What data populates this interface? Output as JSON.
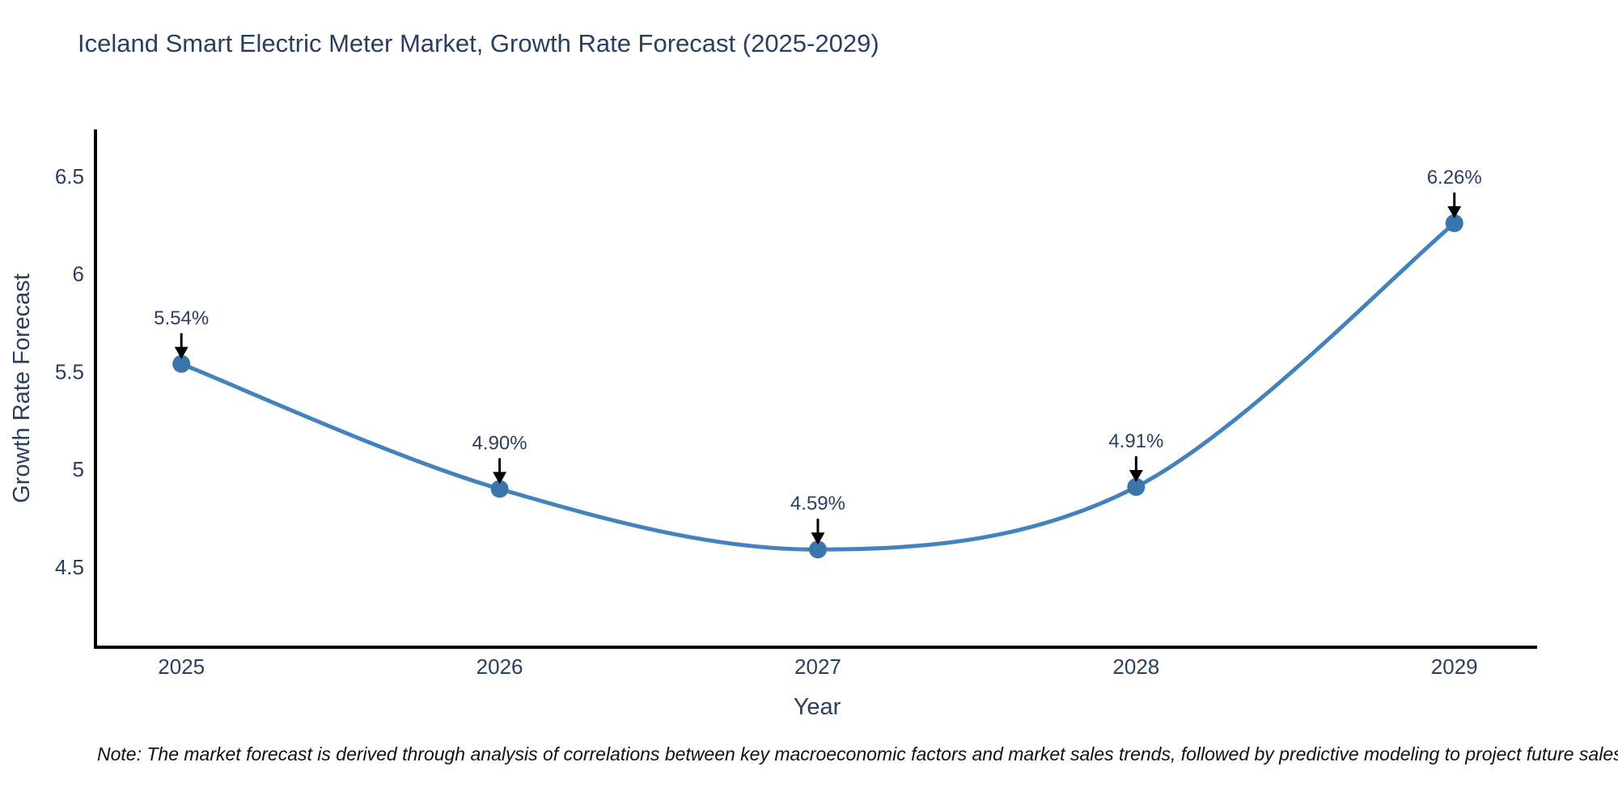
{
  "page": {
    "background": "#ffffff"
  },
  "title": "Iceland Smart Electric Meter Market, Growth Rate Forecast (2025-2029)",
  "note": "Note: The market forecast is derived through analysis of correlations between key macroeconomic factors and market sales trends, followed by predictive modeling to project future sales",
  "chart_data": {
    "type": "line",
    "title": "Iceland Smart Electric Meter Market, Growth Rate Forecast (2025-2029)",
    "xlabel": "Year",
    "ylabel": "Growth Rate Forecast",
    "x": [
      2025,
      2026,
      2027,
      2028,
      2029
    ],
    "series": [
      {
        "name": "Growth Rate Forecast",
        "values": [
          5.54,
          4.9,
          4.59,
          4.91,
          6.26
        ]
      }
    ],
    "point_labels": [
      "5.54%",
      "4.90%",
      "4.59%",
      "4.91%",
      "6.26%"
    ],
    "xtick_labels": [
      "2025",
      "2026",
      "2027",
      "2028",
      "2029"
    ],
    "yticks": [
      4.5,
      5,
      5.5,
      6,
      6.5
    ],
    "ytick_labels": [
      "4.5",
      "5",
      "5.5",
      "6",
      "6.5"
    ],
    "xlim": [
      2024.73,
      2029.26
    ],
    "ylim": [
      4.09,
      6.74
    ],
    "line_shape": "spline",
    "grid": false,
    "legend": "none",
    "marker": "circle",
    "annotation_arrows": true,
    "colors": {
      "line": "#4382bd",
      "marker": "#3a76ab",
      "axis": "#000000",
      "text": "#2a3f5f",
      "annotation": "#2a3f5f",
      "arrow": "#000000",
      "note_text": "#111111",
      "background": "#ffffff"
    }
  }
}
